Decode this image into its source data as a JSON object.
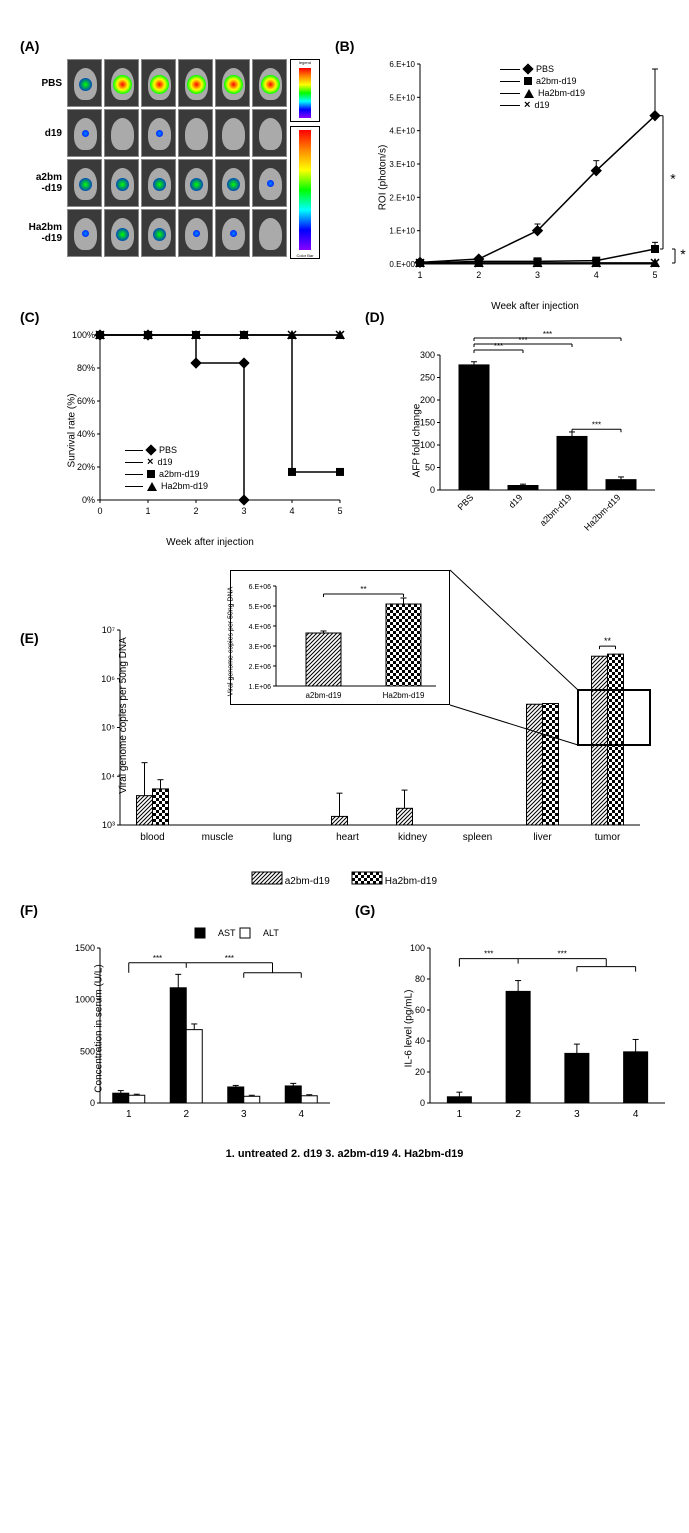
{
  "panelA": {
    "label": "(A)",
    "rows": [
      "PBS",
      "d19",
      "a2bm-d19",
      "Ha2bm-d19"
    ],
    "glow_types": [
      [
        "med",
        "large",
        "large",
        "large",
        "large",
        "large"
      ],
      [
        "small",
        "",
        "small",
        "",
        "",
        ""
      ],
      [
        "med",
        "med",
        "med",
        "med",
        "med",
        "small"
      ],
      [
        "small",
        "med",
        "med",
        "small",
        "small",
        ""
      ]
    ]
  },
  "panelB": {
    "label": "(B)",
    "type": "line",
    "ylabel": "ROI (photon/s)",
    "xlabel": "Week after injection",
    "ylim": [
      0,
      60000000000.0
    ],
    "yticks": [
      "0.E+00",
      "1.E+10",
      "2.E+10",
      "3.E+10",
      "4.E+10",
      "5.E+10",
      "6.E+10"
    ],
    "xticks": [
      1,
      2,
      3,
      4,
      5
    ],
    "series": [
      {
        "name": "PBS",
        "marker": "diamond",
        "data": [
          [
            1,
            500000000.0
          ],
          [
            2,
            1500000000.0
          ],
          [
            3,
            10000000000.0
          ],
          [
            4,
            28000000000.0
          ],
          [
            5,
            44500000000.0
          ]
        ],
        "err": [
          0,
          500000000.0,
          2000000000.0,
          3000000000.0,
          14000000000.0
        ]
      },
      {
        "name": "a2bm-d19",
        "marker": "square",
        "data": [
          [
            1,
            300000000.0
          ],
          [
            2,
            800000000.0
          ],
          [
            3,
            800000000.0
          ],
          [
            4,
            1000000000.0
          ],
          [
            5,
            4500000000.0
          ]
        ],
        "err": [
          0,
          0,
          0,
          500000000.0,
          2000000000.0
        ]
      },
      {
        "name": "Ha2bm-d19",
        "marker": "triangle",
        "data": [
          [
            1,
            300000000.0
          ],
          [
            2,
            300000000.0
          ],
          [
            3,
            300000000.0
          ],
          [
            4,
            300000000.0
          ],
          [
            5,
            300000000.0
          ]
        ],
        "err": [
          0,
          0,
          0,
          0,
          0
        ]
      },
      {
        "name": "d19",
        "marker": "x",
        "data": [
          [
            1,
            300000000.0
          ],
          [
            2,
            300000000.0
          ],
          [
            3,
            300000000.0
          ],
          [
            4,
            300000000.0
          ],
          [
            5,
            300000000.0
          ]
        ],
        "err": [
          0,
          0,
          0,
          0,
          0
        ]
      }
    ],
    "sig1": "*",
    "sig2": "*"
  },
  "panelC": {
    "label": "(C)",
    "type": "line",
    "ylabel": "Survival rate (%)",
    "xlabel": "Week after injection",
    "yticks": [
      "0%",
      "20%",
      "40%",
      "60%",
      "80%",
      "100%"
    ],
    "xticks": [
      0,
      1,
      2,
      3,
      4,
      5
    ],
    "legend": [
      "PBS",
      "d19",
      "a2bm-d19",
      "Ha2bm-d19"
    ],
    "series": {
      "PBS": [
        [
          0,
          100
        ],
        [
          1,
          100
        ],
        [
          2,
          83
        ],
        [
          3,
          83
        ],
        [
          3,
          0
        ]
      ],
      "d19": [
        [
          0,
          100
        ],
        [
          1,
          100
        ],
        [
          2,
          100
        ],
        [
          3,
          100
        ],
        [
          4,
          100
        ],
        [
          5,
          100
        ]
      ],
      "a2bm-d19": [
        [
          0,
          100
        ],
        [
          1,
          100
        ],
        [
          2,
          100
        ],
        [
          3,
          100
        ],
        [
          4,
          17
        ],
        [
          5,
          17
        ]
      ],
      "Ha2bm-d19": [
        [
          0,
          100
        ],
        [
          1,
          100
        ],
        [
          2,
          100
        ],
        [
          3,
          100
        ],
        [
          4,
          100
        ],
        [
          5,
          100
        ]
      ]
    }
  },
  "panelD": {
    "label": "(D)",
    "type": "bar",
    "ylabel": "AFP fold change",
    "yticks": [
      0,
      50,
      100,
      150,
      200,
      250,
      300
    ],
    "categories": [
      "PBS",
      "d19",
      "a2bm-d19",
      "Ha2bm-d19"
    ],
    "values": [
      278,
      10,
      119,
      23
    ],
    "errors": [
      7,
      3,
      10,
      6
    ],
    "sig_labels": [
      "***",
      "***",
      "***",
      "***"
    ]
  },
  "panelE": {
    "label": "(E)",
    "type": "grouped-bar",
    "ylabel": "Viral genome copies per 50ng DNA",
    "yticks": [
      "10³",
      "10⁴",
      "10⁵",
      "10⁶",
      "10⁷"
    ],
    "yvals": [
      3,
      4,
      5,
      6,
      7
    ],
    "categories": [
      "blood",
      "muscle",
      "lung",
      "heart",
      "kidney",
      "spleen",
      "liver",
      "tumor"
    ],
    "legend": [
      "a2bm-d19",
      "Ha2bm-d19"
    ],
    "series1": [
      4000,
      0,
      0,
      1500,
      2200,
      0,
      300000,
      2900000
    ],
    "series2": [
      5500,
      0,
      0,
      0,
      0,
      0,
      310000,
      3200000
    ],
    "err1": [
      15000,
      0,
      0,
      3000,
      3000,
      0,
      0,
      0
    ],
    "err2": [
      3000,
      0,
      0,
      0,
      0,
      0,
      0,
      0
    ],
    "sig": "**",
    "inset": {
      "ylabel": "Viral genome copies per 50ng DNA",
      "yticks": [
        "1.E+06",
        "2.E+06",
        "3.E+06",
        "4.E+06",
        "5.E+06",
        "6.E+06"
      ],
      "categories": [
        "a2bm-d19",
        "Ha2bm-d19"
      ],
      "values": [
        3650000.0,
        5100000.0
      ],
      "errors": [
        100000.0,
        300000.0
      ],
      "sig": "**"
    }
  },
  "panelF": {
    "label": "(F)",
    "type": "grouped-bar",
    "ylabel": "Concentration in serum (U/L)",
    "yticks": [
      0,
      500,
      1000,
      1500
    ],
    "categories": [
      1,
      2,
      3,
      4
    ],
    "legend": [
      "AST",
      "ALT"
    ],
    "AST": [
      95,
      1115,
      155,
      165
    ],
    "AST_err": [
      25,
      130,
      15,
      25
    ],
    "ALT": [
      75,
      710,
      65,
      70
    ],
    "ALT_err": [
      10,
      55,
      10,
      10
    ],
    "sig": "***"
  },
  "panelG": {
    "label": "(G)",
    "type": "bar",
    "ylabel": "IL-6 level (pg/mL)",
    "yticks": [
      0,
      20,
      40,
      60,
      80,
      100
    ],
    "categories": [
      1,
      2,
      3,
      4
    ],
    "values": [
      4,
      72,
      32,
      33
    ],
    "errors": [
      3,
      7,
      6,
      8
    ],
    "sig": "***"
  },
  "bottom_legend": "1. untreated    2. d19    3. a2bm-d19    4. Ha2bm-d19"
}
